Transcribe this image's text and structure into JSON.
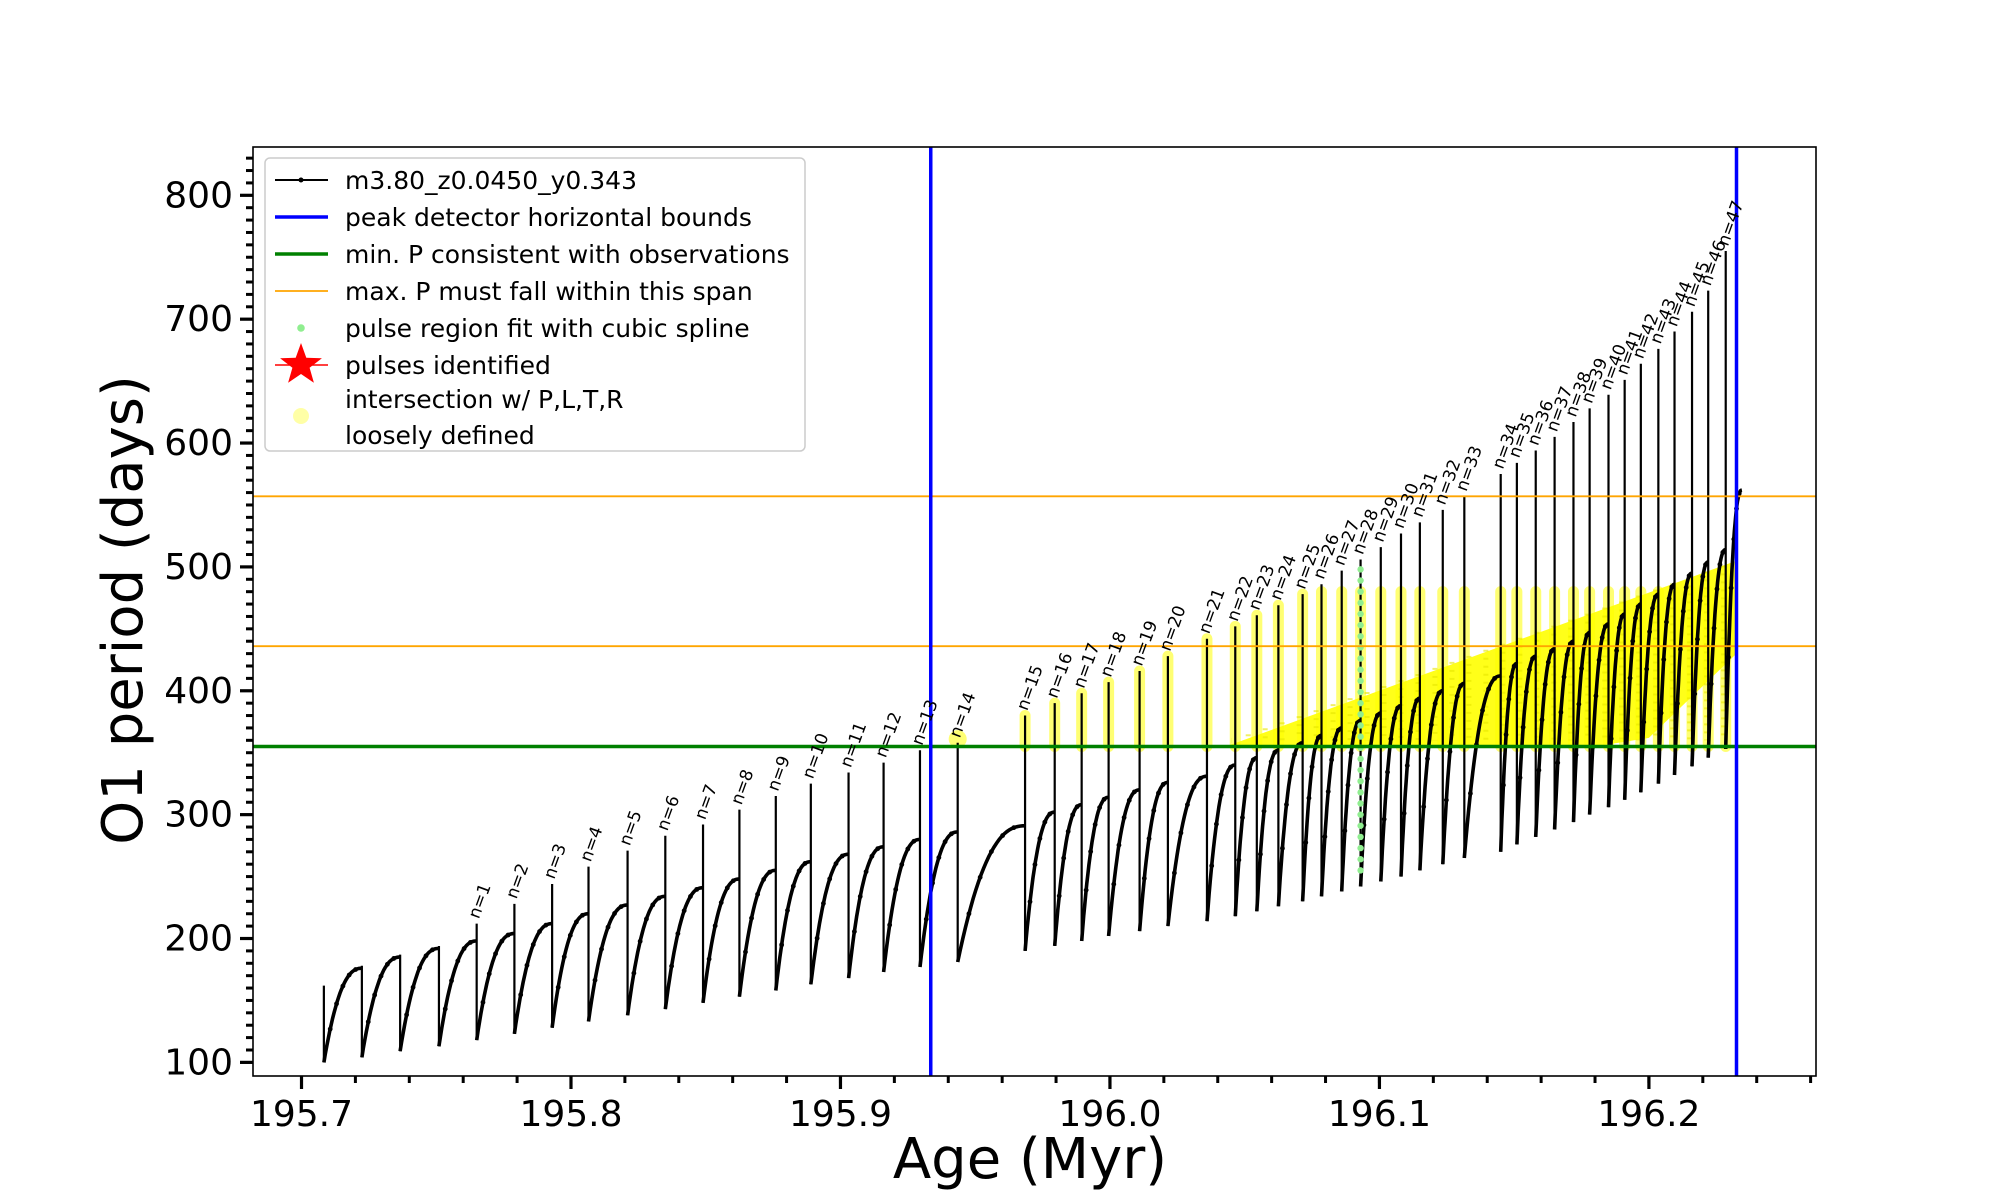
{
  "chart_data": {
    "type": "line",
    "title": "",
    "xlabel": "Age (Myr)",
    "ylabel": "O1 period (days)",
    "xlim": [
      195.682,
      196.262
    ],
    "ylim": [
      89,
      839
    ],
    "xticks": [
      195.7,
      195.8,
      195.9,
      196.0,
      196.1,
      196.2
    ],
    "xtick_labels": [
      "195.7",
      "195.8",
      "195.9",
      "196.0",
      "196.1",
      "196.2"
    ],
    "yticks": [
      100,
      200,
      300,
      400,
      500,
      600,
      700,
      800
    ],
    "ytick_labels": [
      "100",
      "200",
      "300",
      "400",
      "500",
      "600",
      "700",
      "800"
    ],
    "legend_position": "upper-left",
    "legend": [
      {
        "key": "track",
        "label": "m3.80_z0.0450_y0.343",
        "color": "#000000",
        "marker": "line-dot"
      },
      {
        "key": "bounds",
        "label": "peak detector horizontal bounds",
        "color": "#0000ff",
        "marker": "line"
      },
      {
        "key": "minp",
        "label": "min. P consistent with observations",
        "color": "#008000",
        "marker": "line"
      },
      {
        "key": "maxp",
        "label": "max. P must fall within this span",
        "color": "#ffa500",
        "marker": "thin-line"
      },
      {
        "key": "spline",
        "label": "pulse region fit with cubic spline",
        "color": "#90ee90",
        "marker": "dot"
      },
      {
        "key": "pulses",
        "label": "pulses identified",
        "color": "#ff0000",
        "marker": "star"
      },
      {
        "key": "loose",
        "label": "intersection w/ P,L,T,R",
        "label2": "loosely defined",
        "color": "#ffff00",
        "marker": "circle"
      }
    ],
    "vertical_lines": [
      195.9335,
      196.2325
    ],
    "min_period_line": 355,
    "max_period_span": [
      436,
      557
    ],
    "spline_region": {
      "age": 196.093,
      "period_range": [
        255,
        505
      ]
    },
    "pulses": [
      {
        "n": 1,
        "age": 195.765,
        "peak": 204,
        "trough": 118
      },
      {
        "n": 2,
        "age": 195.779,
        "peak": 212,
        "trough": 123
      },
      {
        "n": 3,
        "age": 195.793,
        "peak": 220,
        "trough": 128
      },
      {
        "n": 4,
        "age": 195.8065,
        "peak": 227,
        "trough": 133
      },
      {
        "n": 5,
        "age": 195.821,
        "peak": 234,
        "trough": 138
      },
      {
        "n": 6,
        "age": 195.835,
        "peak": 241,
        "trough": 143
      },
      {
        "n": 7,
        "age": 195.849,
        "peak": 248,
        "trough": 148
      },
      {
        "n": 8,
        "age": 195.8625,
        "peak": 255,
        "trough": 153
      },
      {
        "n": 9,
        "age": 195.876,
        "peak": 262,
        "trough": 158
      },
      {
        "n": 10,
        "age": 195.889,
        "peak": 268,
        "trough": 163
      },
      {
        "n": 11,
        "age": 195.903,
        "peak": 274,
        "trough": 168
      },
      {
        "n": 12,
        "age": 195.916,
        "peak": 280,
        "trough": 173
      },
      {
        "n": 13,
        "age": 195.9295,
        "peak": 286,
        "trough": 177
      },
      {
        "n": 14,
        "age": 195.9435,
        "peak": 291,
        "trough": 181
      },
      {
        "n": 15,
        "age": 195.9685,
        "peak": 302,
        "trough": 190
      },
      {
        "n": 16,
        "age": 195.9795,
        "peak": 308,
        "trough": 194
      },
      {
        "n": 17,
        "age": 195.9895,
        "peak": 314,
        "trough": 198
      },
      {
        "n": 18,
        "age": 195.9995,
        "peak": 320,
        "trough": 202
      },
      {
        "n": 19,
        "age": 196.011,
        "peak": 326,
        "trough": 206
      },
      {
        "n": 20,
        "age": 196.0215,
        "peak": 331,
        "trough": 210
      },
      {
        "n": 21,
        "age": 196.036,
        "peak": 340,
        "trough": 214
      },
      {
        "n": 22,
        "age": 196.0465,
        "peak": 346,
        "trough": 218
      },
      {
        "n": 23,
        "age": 196.0545,
        "peak": 352,
        "trough": 222
      },
      {
        "n": 24,
        "age": 196.0625,
        "peak": 358,
        "trough": 226
      },
      {
        "n": 25,
        "age": 196.0715,
        "peak": 364,
        "trough": 230
      },
      {
        "n": 26,
        "age": 196.0785,
        "peak": 370,
        "trough": 234
      },
      {
        "n": 27,
        "age": 196.086,
        "peak": 376,
        "trough": 238
      },
      {
        "n": 28,
        "age": 196.093,
        "peak": 382,
        "trough": 242
      },
      {
        "n": 29,
        "age": 196.1005,
        "peak": 388,
        "trough": 246
      },
      {
        "n": 30,
        "age": 196.108,
        "peak": 394,
        "trough": 250
      },
      {
        "n": 31,
        "age": 196.115,
        "peak": 400,
        "trough": 255
      },
      {
        "n": 32,
        "age": 196.1235,
        "peak": 406,
        "trough": 260
      },
      {
        "n": 33,
        "age": 196.1315,
        "peak": 412,
        "trough": 265
      },
      {
        "n": 34,
        "age": 196.145,
        "peak": 422,
        "trough": 270
      },
      {
        "n": 35,
        "age": 196.151,
        "peak": 428,
        "trough": 276
      },
      {
        "n": 36,
        "age": 196.158,
        "peak": 434,
        "trough": 282
      },
      {
        "n": 37,
        "age": 196.165,
        "peak": 440,
        "trough": 288
      },
      {
        "n": 38,
        "age": 196.172,
        "peak": 447,
        "trough": 294
      },
      {
        "n": 39,
        "age": 196.178,
        "peak": 454,
        "trough": 300
      },
      {
        "n": 40,
        "age": 196.185,
        "peak": 462,
        "trough": 306
      },
      {
        "n": 41,
        "age": 196.191,
        "peak": 470,
        "trough": 312
      },
      {
        "n": 42,
        "age": 196.197,
        "peak": 478,
        "trough": 318
      },
      {
        "n": 43,
        "age": 196.2035,
        "peak": 486,
        "trough": 325
      },
      {
        "n": 44,
        "age": 196.2095,
        "peak": 495,
        "trough": 332
      },
      {
        "n": 45,
        "age": 196.216,
        "peak": 504,
        "trough": 339
      },
      {
        "n": 46,
        "age": 196.222,
        "peak": 514,
        "trough": 346
      },
      {
        "n": 47,
        "age": 196.2285,
        "peak": 525,
        "trough": 353
      }
    ],
    "pulse_tops": [
      {
        "n": 1,
        "top": 212
      },
      {
        "n": 2,
        "top": 228
      },
      {
        "n": 3,
        "top": 244
      },
      {
        "n": 4,
        "top": 258
      },
      {
        "n": 5,
        "top": 271
      },
      {
        "n": 6,
        "top": 283
      },
      {
        "n": 7,
        "top": 292
      },
      {
        "n": 8,
        "top": 304
      },
      {
        "n": 9,
        "top": 315
      },
      {
        "n": 10,
        "top": 325
      },
      {
        "n": 11,
        "top": 334
      },
      {
        "n": 12,
        "top": 342
      },
      {
        "n": 13,
        "top": 352
      },
      {
        "n": 14,
        "top": 358
      },
      {
        "n": 15,
        "top": 380
      },
      {
        "n": 16,
        "top": 390
      },
      {
        "n": 17,
        "top": 398
      },
      {
        "n": 18,
        "top": 407
      },
      {
        "n": 19,
        "top": 416
      },
      {
        "n": 20,
        "top": 428
      },
      {
        "n": 21,
        "top": 442
      },
      {
        "n": 22,
        "top": 452
      },
      {
        "n": 23,
        "top": 461
      },
      {
        "n": 24,
        "top": 469
      },
      {
        "n": 25,
        "top": 478
      },
      {
        "n": 26,
        "top": 486
      },
      {
        "n": 27,
        "top": 497
      },
      {
        "n": 28,
        "top": 506
      },
      {
        "n": 29,
        "top": 516
      },
      {
        "n": 30,
        "top": 527
      },
      {
        "n": 31,
        "top": 536
      },
      {
        "n": 32,
        "top": 546
      },
      {
        "n": 33,
        "top": 557
      },
      {
        "n": 34,
        "top": 575
      },
      {
        "n": 35,
        "top": 584
      },
      {
        "n": 36,
        "top": 594
      },
      {
        "n": 37,
        "top": 605
      },
      {
        "n": 38,
        "top": 617
      },
      {
        "n": 39,
        "top": 628
      },
      {
        "n": 40,
        "top": 639
      },
      {
        "n": 41,
        "top": 651
      },
      {
        "n": 42,
        "top": 664
      },
      {
        "n": 43,
        "top": 676
      },
      {
        "n": 44,
        "top": 690
      },
      {
        "n": 45,
        "top": 706
      },
      {
        "n": 46,
        "top": 723
      },
      {
        "n": 47,
        "top": 755
      }
    ],
    "early_pulses": [
      {
        "age": 195.7083,
        "peak": 176,
        "trough": 100,
        "top": 162
      },
      {
        "age": 195.7224,
        "peak": 185,
        "trough": 104,
        "top": 178
      },
      {
        "age": 195.7366,
        "peak": 192,
        "trough": 109,
        "top": 187
      },
      {
        "age": 195.751,
        "peak": 198,
        "trough": 113,
        "top": 194
      }
    ]
  }
}
